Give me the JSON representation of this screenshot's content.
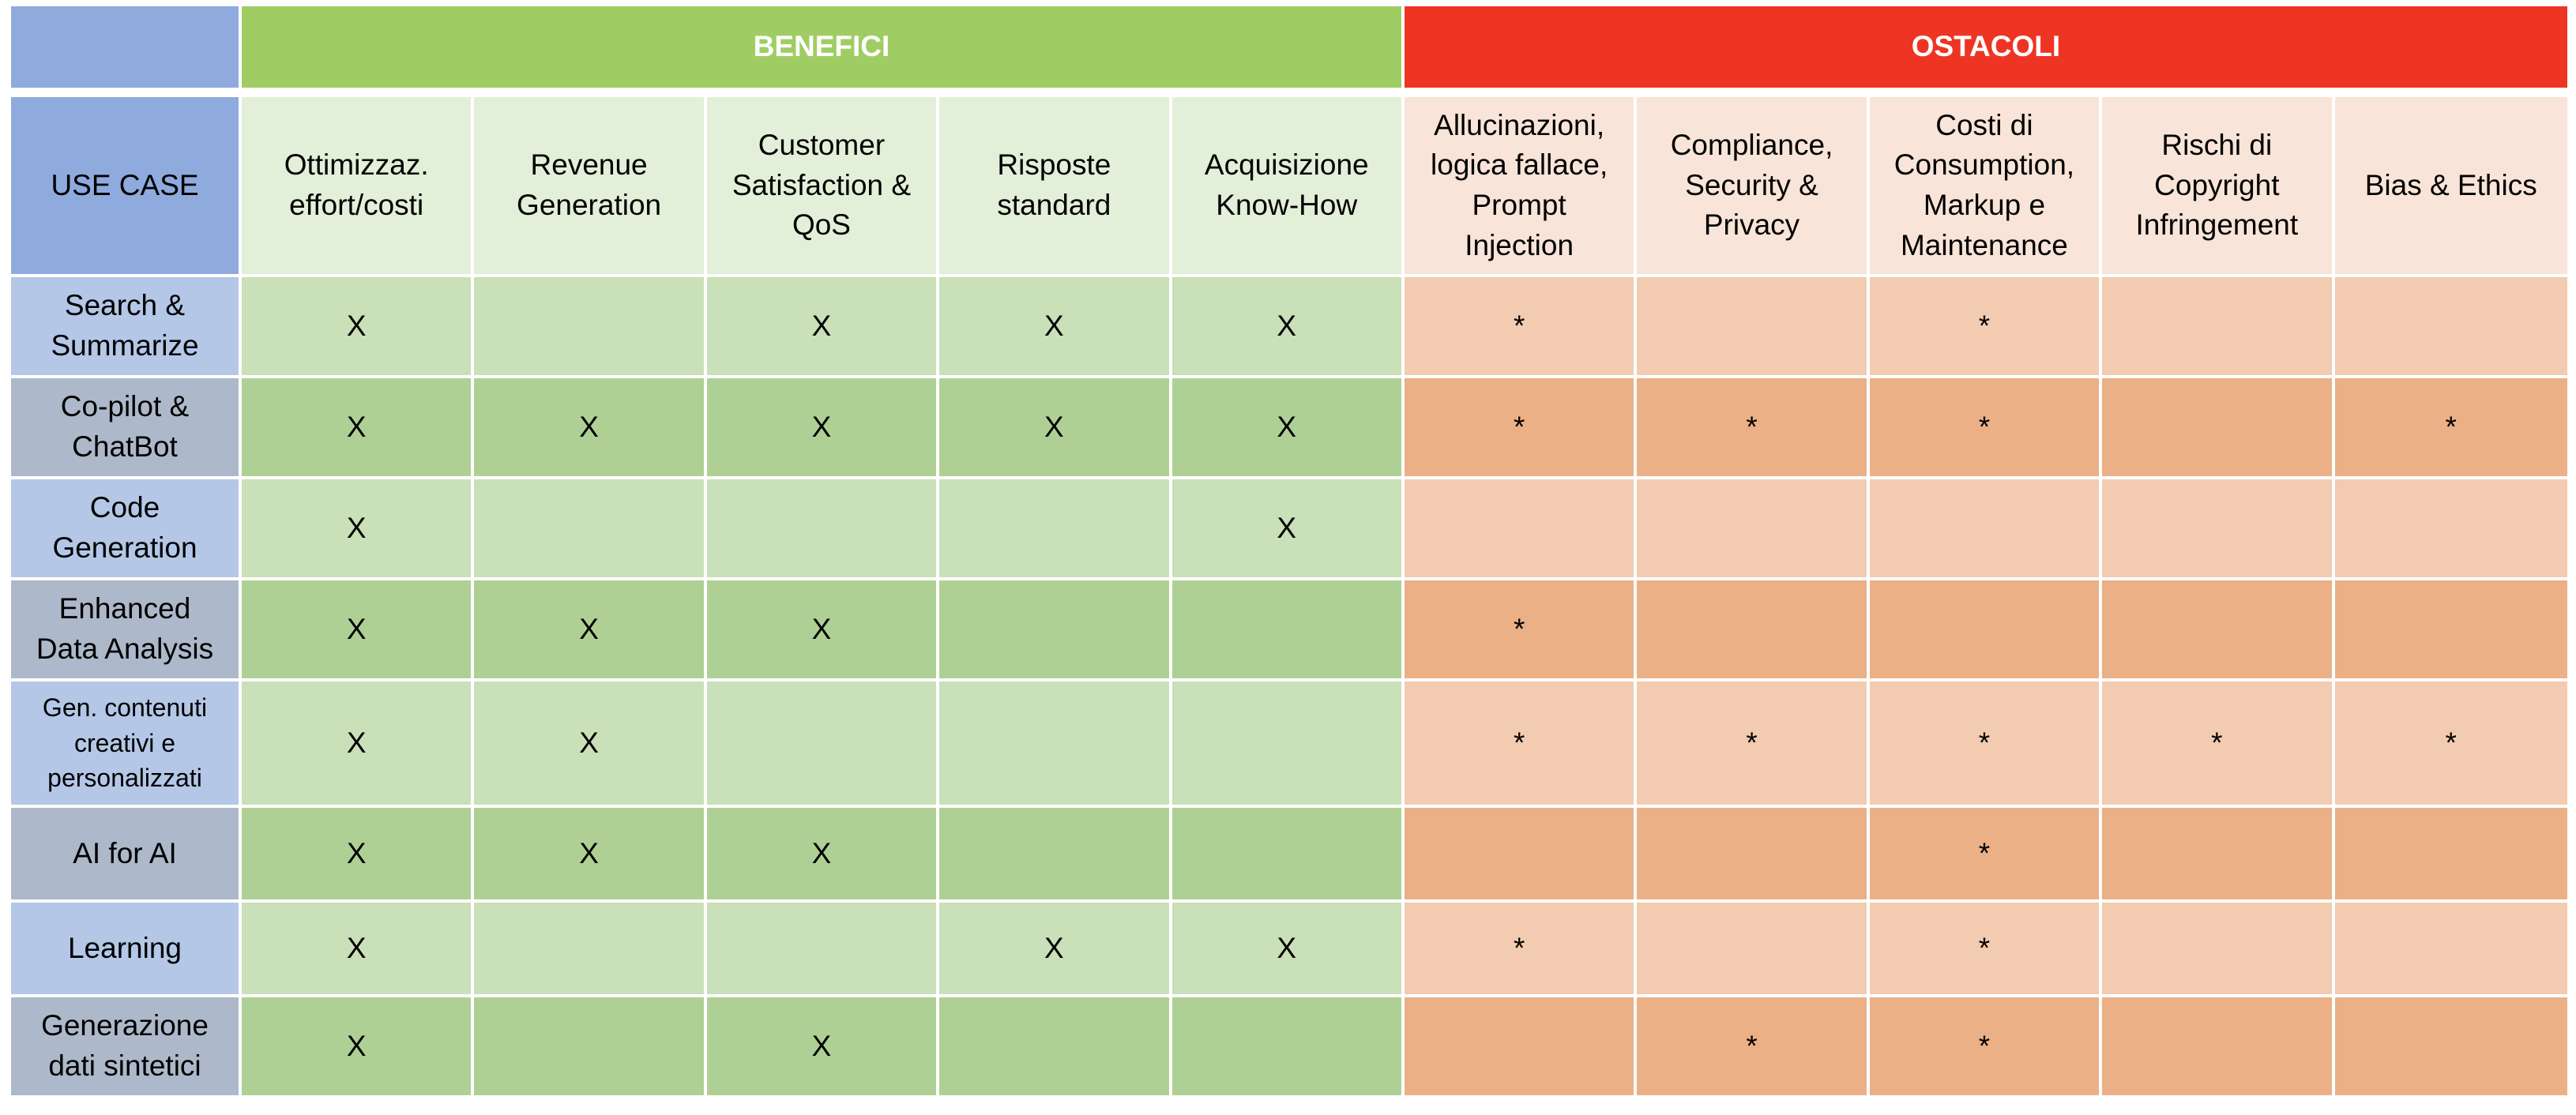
{
  "header": {
    "benefici": "BENEFICI",
    "ostacoli": "OSTACOLI",
    "use_case": "USE CASE"
  },
  "benefit_columns": [
    "Ottimizzaz.\neffort/costi",
    "Revenue\nGeneration",
    "Customer\nSatisfaction &\nQoS",
    "Risposte\nstandard",
    "Acquisizione\nKnow-How"
  ],
  "obstacle_columns": [
    "Allucinazioni,\nlogica fallace,\nPrompt\nInjection",
    "Compliance,\nSecurity &\nPrivacy",
    "Costi di\nConsumption,\nMarkup e\nMaintenance",
    "Rischi di\nCopyright\nInfringement",
    "Bias & Ethics"
  ],
  "rows": [
    {
      "label": "Search &\nSummarize",
      "benefits": [
        "X",
        "",
        "X",
        "X",
        "X"
      ],
      "obstacles": [
        "*",
        "",
        "*",
        "",
        ""
      ]
    },
    {
      "label": "Co-pilot &\nChatBot",
      "benefits": [
        "X",
        "X",
        "X",
        "X",
        "X"
      ],
      "obstacles": [
        "*",
        "*",
        "*",
        "",
        "*"
      ]
    },
    {
      "label": "Code\nGeneration",
      "benefits": [
        "X",
        "",
        "",
        "",
        "X"
      ],
      "obstacles": [
        "",
        "",
        "",
        "",
        ""
      ]
    },
    {
      "label": "Enhanced\nData Analysis",
      "benefits": [
        "X",
        "X",
        "X",
        "",
        ""
      ],
      "obstacles": [
        "*",
        "",
        "",
        "",
        ""
      ]
    },
    {
      "label": "Gen. contenuti\ncreativi e\npersonalizzati",
      "benefits": [
        "X",
        "X",
        "",
        "",
        ""
      ],
      "obstacles": [
        "*",
        "*",
        "*",
        "*",
        "*"
      ]
    },
    {
      "label": "AI for AI",
      "benefits": [
        "X",
        "X",
        "X",
        "",
        ""
      ],
      "obstacles": [
        "",
        "",
        "*",
        "",
        ""
      ]
    },
    {
      "label": "Learning",
      "benefits": [
        "X",
        "",
        "",
        "X",
        "X"
      ],
      "obstacles": [
        "*",
        "",
        "*",
        "",
        ""
      ]
    },
    {
      "label": "Generazione\ndati sintetici",
      "benefits": [
        "X",
        "",
        "X",
        "",
        ""
      ],
      "obstacles": [
        "",
        "*",
        "*",
        "",
        ""
      ]
    }
  ],
  "colors": {
    "benefici_header": "#a0cd63",
    "ostacoli_header": "#ee3524",
    "use_case_header": "#8faadc",
    "benefit_light": "#c9e0b8",
    "benefit_dark": "#afd095",
    "obstacle_light": "#f2cbb0",
    "obstacle_dark": "#ebb086"
  }
}
